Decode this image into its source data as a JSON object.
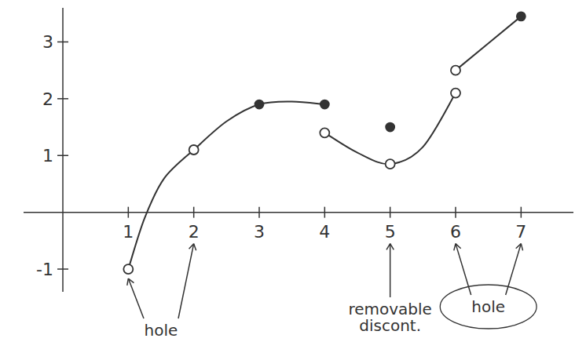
{
  "chart_data": {
    "type": "line",
    "xlim": [
      -0.6,
      7.8
    ],
    "ylim": [
      -1.4,
      3.6
    ],
    "xticks": [
      1,
      2,
      3,
      4,
      5,
      6,
      7
    ],
    "yticks": [
      -1,
      1,
      2,
      3
    ],
    "grid": false,
    "series": [
      {
        "type": "line",
        "color": "#333333",
        "x": [
          1,
          1.25,
          1.55,
          2
        ],
        "values": [
          -1,
          -0.1,
          0.6,
          1.1
        ]
      },
      {
        "type": "line",
        "color": "#333333",
        "x": [
          2,
          2.5,
          3,
          3.5,
          4
        ],
        "values": [
          1.1,
          1.6,
          1.9,
          1.95,
          1.9
        ]
      },
      {
        "type": "line",
        "color": "#333333",
        "x": [
          4,
          4.5,
          5,
          5.5,
          6
        ],
        "values": [
          1.4,
          1.05,
          0.85,
          1.15,
          2.1
        ]
      },
      {
        "type": "line",
        "color": "#333333",
        "x": [
          6,
          7
        ],
        "values": [
          2.5,
          3.45
        ]
      },
      {
        "type": "scatter",
        "marker": "open",
        "color": "#333333",
        "x": [
          1,
          2,
          4,
          5,
          6,
          6
        ],
        "values": [
          -1,
          1.1,
          1.4,
          0.85,
          2.1,
          2.5
        ]
      },
      {
        "type": "scatter",
        "marker": "filled",
        "color": "#333333",
        "x": [
          3,
          4,
          5,
          7
        ],
        "values": [
          1.9,
          1.9,
          1.5,
          3.45
        ]
      }
    ],
    "annotations": [
      {
        "text": "hole",
        "targets": [
          1,
          2
        ]
      },
      {
        "text": "removable discont.",
        "targets": [
          5
        ]
      },
      {
        "text": "hole",
        "targets": [
          6,
          7
        ]
      }
    ]
  }
}
